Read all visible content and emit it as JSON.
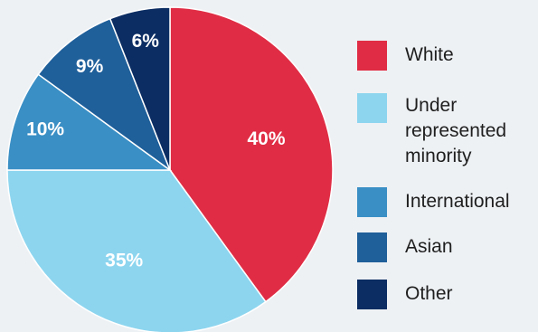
{
  "chart_data": {
    "type": "pie",
    "title": "",
    "start_angle_deg": 0,
    "direction": "clockwise",
    "slices": [
      {
        "label": "White",
        "value": 40,
        "display": "40%",
        "color": "#e02d45",
        "label_color": "#ffffff"
      },
      {
        "label": "Under represented minority",
        "value": 35,
        "display": "35%",
        "color": "#8dd5ef",
        "label_color": "#ffffff"
      },
      {
        "label": "International",
        "value": 10,
        "display": "10%",
        "color": "#3a8fc5",
        "label_color": "#ffffff"
      },
      {
        "label": "Asian",
        "value": 9,
        "display": "9%",
        "color": "#1f5f9a",
        "label_color": "#ffffff"
      },
      {
        "label": "Other",
        "value": 6,
        "display": "6%",
        "color": "#0b2d63",
        "label_color": "#ffffff"
      }
    ],
    "legend_position": "right"
  }
}
